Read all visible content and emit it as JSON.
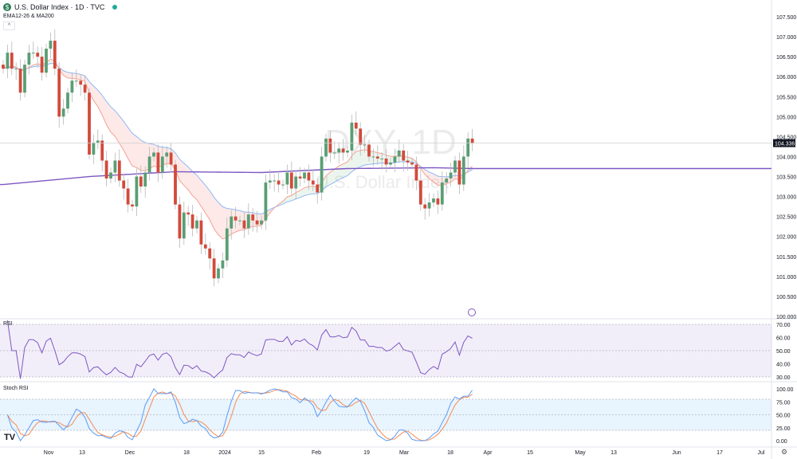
{
  "header": {
    "title": "U.S. Dollar Index · 1D · TVC",
    "logo_letter": "$",
    "indicator": "EMA12-26 & MA200",
    "collapse_icon": "^"
  },
  "watermark": {
    "line1": "DXY, 1D",
    "line2": "U.S. Dollar Index"
  },
  "panes": {
    "rsi_label": "RSI",
    "stoch_label": "Stoch RSI"
  },
  "colors": {
    "up": "#5a9e74",
    "down": "#d24a3b",
    "ema12": "#f4a292",
    "ema26": "#8fb8f5",
    "ma200": "#7e57c2",
    "rsi": "#7e57c2",
    "stoch_k": "#5b9cf6",
    "stoch_d": "#f58b52"
  },
  "price_axis": {
    "ticks": [
      "107.500",
      "107.000",
      "106.500",
      "106.000",
      "105.500",
      "105.000",
      "104.500",
      "104.000",
      "103.500",
      "103.000",
      "102.500",
      "102.000",
      "101.500",
      "101.000",
      "100.500",
      "100.000"
    ],
    "current": "104.336"
  },
  "rsi_axis": {
    "ticks": [
      "70.00",
      "60.00",
      "50.00",
      "40.00",
      "30.00"
    ]
  },
  "stoch_axis": {
    "ticks": [
      "100.00",
      "75.00",
      "50.00",
      "25.00",
      "0.00"
    ]
  },
  "time_axis": {
    "labels": [
      "Nov",
      "13",
      "Dec",
      "18",
      "2024",
      "15",
      "Feb",
      "19",
      "Mar",
      "18",
      "Apr",
      "15",
      "May",
      "13",
      "Jun",
      "17",
      "Jul"
    ]
  },
  "tv_logo": "TV",
  "chart_data": {
    "type": "candlestick",
    "symbol": "DXY",
    "interval": "1D",
    "ylim": [
      100,
      107.5
    ],
    "closes": [
      106.2,
      106.6,
      106.2,
      106.2,
      105.6,
      106.3,
      106.6,
      106.6,
      106.5,
      106.1,
      106.7,
      106.9,
      106.2,
      105.0,
      105.2,
      105.6,
      105.9,
      105.9,
      105.8,
      105.6,
      104.05,
      104.35,
      104.4,
      103.9,
      103.45,
      103.6,
      103.9,
      103.4,
      103.2,
      102.8,
      102.75,
      103.5,
      103.25,
      103.6,
      104.0,
      104.1,
      103.6,
      104.0,
      104.1,
      103.8,
      102.8,
      101.95,
      102.6,
      102.55,
      102.2,
      102.4,
      101.8,
      101.7,
      101.45,
      100.95,
      101.2,
      101.4,
      102.2,
      102.5,
      102.4,
      102.4,
      102.2,
      102.55,
      102.4,
      102.3,
      102.4,
      103.35,
      103.4,
      103.4,
      103.3,
      103.3,
      103.6,
      103.2,
      103.5,
      103.45,
      103.6,
      103.4,
      103.3,
      103.1,
      104.0,
      104.45,
      104.1,
      104.1,
      104.2,
      104.1,
      104.15,
      104.85,
      104.7,
      104.3,
      104.3,
      104.0,
      104.0,
      103.95,
      103.95,
      103.8,
      103.85,
      104.0,
      104.15,
      103.9,
      103.85,
      103.8,
      103.4,
      102.8,
      102.7,
      102.85,
      102.95,
      102.8,
      103.35,
      103.45,
      103.6,
      103.9,
      103.3,
      104.0,
      104.45,
      104.336
    ],
    "ma200_anchors": [
      [
        0,
        103.3
      ],
      [
        20,
        103.5
      ],
      [
        40,
        103.62
      ],
      [
        60,
        103.6
      ],
      [
        80,
        103.7
      ],
      [
        100,
        103.72
      ],
      [
        109,
        103.7
      ]
    ]
  }
}
